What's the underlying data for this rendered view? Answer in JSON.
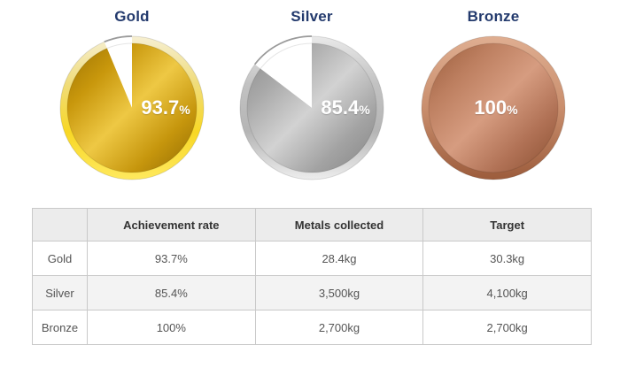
{
  "page": {
    "background": "#ffffff"
  },
  "chart_data": [
    {
      "type": "pie",
      "title": "Gold",
      "percent": 93.7,
      "percent_label": "93.7",
      "percent_sign": "%",
      "slices": [
        {
          "label": "achieved",
          "value": 93.7,
          "color": "gold-gradient"
        },
        {
          "label": "remaining",
          "value": 6.3,
          "color": "#ffffff"
        }
      ],
      "start_angle": "top",
      "direction": "clockwise",
      "legend": "none",
      "colors": {
        "body": [
          "#9a7203",
          "#c8970c",
          "#eec844",
          "#c6960d",
          "#8f6a02"
        ],
        "ring": [
          "#f6efd2",
          "#f0dc7a",
          "#f8d725",
          "#ffe95e"
        ],
        "gap_rim": "#9a9a9a",
        "label": "#ffffff",
        "title": "#233a6d"
      }
    },
    {
      "type": "pie",
      "title": "Silver",
      "percent": 85.4,
      "percent_label": "85.4",
      "percent_sign": "%",
      "slices": [
        {
          "label": "achieved",
          "value": 85.4,
          "color": "silver-gradient"
        },
        {
          "label": "remaining",
          "value": 14.6,
          "color": "#ffffff"
        }
      ],
      "start_angle": "top",
      "direction": "clockwise",
      "legend": "none",
      "colors": {
        "body": [
          "#8a8a8a",
          "#a9a9a9",
          "#d2d2d2",
          "#a3a3a3",
          "#848484"
        ],
        "ring": [
          "#e9e9e9",
          "#c2c2c2",
          "#b5b5b5",
          "#ededed"
        ],
        "gap_rim": "#9a9a9a",
        "label": "#ffffff",
        "title": "#233a6d"
      }
    },
    {
      "type": "pie",
      "title": "Bronze",
      "percent": 100,
      "percent_label": "100",
      "percent_sign": "%",
      "slices": [
        {
          "label": "achieved",
          "value": 100,
          "color": "bronze-gradient"
        }
      ],
      "start_angle": "top",
      "direction": "clockwise",
      "legend": "none",
      "colors": {
        "body": [
          "#9a5c3b",
          "#bd7f60",
          "#d69c80",
          "#b07155",
          "#8a4f30"
        ],
        "ring": [
          "#dfae91",
          "#c98e6d",
          "#9c5c3c"
        ],
        "gap_rim": "#9a9a9a",
        "label": "#ffffff",
        "title": "#233a6d"
      }
    }
  ],
  "table": {
    "headers": [
      "",
      "Achievement rate",
      "Metals collected",
      "Target"
    ],
    "rows": [
      {
        "label": "Gold",
        "cells": [
          "93.7%",
          "28.4kg",
          "30.3kg"
        ]
      },
      {
        "label": "Silver",
        "cells": [
          "85.4%",
          "3,500kg",
          "4,100kg"
        ]
      },
      {
        "label": "Bronze",
        "cells": [
          "100%",
          "2,700kg",
          "2,700kg"
        ]
      }
    ]
  }
}
